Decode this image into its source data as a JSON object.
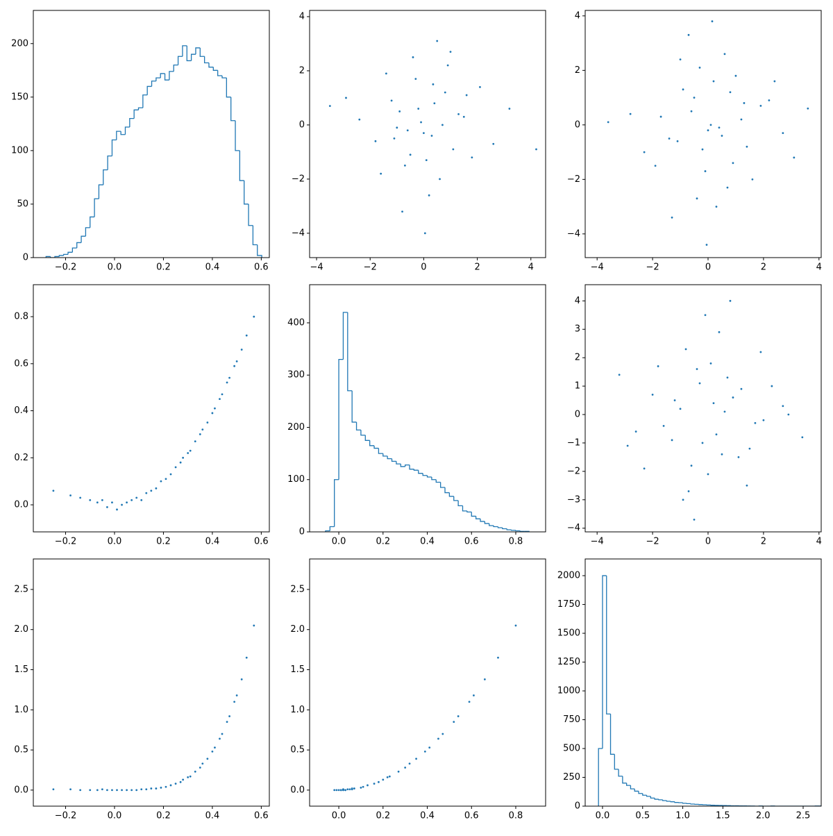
{
  "chart_data": [
    {
      "type": "histogram",
      "bins": [
        -0.28,
        -0.262,
        -0.244,
        -0.226,
        -0.208,
        -0.19,
        -0.172,
        -0.154,
        -0.136,
        -0.118,
        -0.1,
        -0.082,
        -0.064,
        -0.046,
        -0.028,
        -0.01,
        0.008,
        0.026,
        0.044,
        0.062,
        0.08,
        0.098,
        0.116,
        0.134,
        0.152,
        0.17,
        0.188,
        0.206,
        0.224,
        0.242,
        0.26,
        0.278,
        0.296,
        0.314,
        0.332,
        0.35,
        0.368,
        0.386,
        0.404,
        0.422,
        0.44,
        0.458,
        0.476,
        0.494,
        0.512,
        0.53,
        0.548,
        0.566,
        0.584,
        0.602
      ],
      "values": [
        1,
        0,
        1,
        2,
        3,
        5,
        9,
        14,
        20,
        28,
        38,
        55,
        68,
        82,
        95,
        110,
        118,
        115,
        122,
        130,
        138,
        140,
        152,
        160,
        165,
        168,
        172,
        166,
        174,
        180,
        188,
        198,
        184,
        190,
        196,
        188,
        182,
        178,
        175,
        170,
        168,
        150,
        128,
        100,
        72,
        50,
        30,
        12,
        2
      ],
      "color": "#1f77b4",
      "xlim": [
        -0.332,
        0.633
      ],
      "ylim": [
        0,
        231
      ],
      "xticks": [
        {
          "value": -0.2,
          "label": "−0.2"
        },
        {
          "value": 0,
          "label": "0.0"
        },
        0.2,
        0.4,
        0.6
      ],
      "yticks": [
        0,
        50,
        100,
        150,
        200
      ]
    },
    {
      "type": "scatter",
      "color": "#1f77b4",
      "xlim": [
        -4.26,
        4.55
      ],
      "ylim": [
        -4.9,
        4.23
      ],
      "x": [
        0.3,
        -1.2,
        0.8,
        -0.5,
        1.5,
        -0.1,
        0.6,
        -1.8,
        2.1,
        -0.9,
        0.0,
        1.1,
        -0.3,
        -2.4,
        0.9,
        0.4,
        -0.7,
        1.8,
        -1.4,
        0.2,
        -0.2,
        1.3,
        -1.0,
        0.5,
        2.6,
        -0.6,
        0.7,
        -2.9,
        0.1,
        -1.6,
        1.0,
        -0.4,
        3.2,
        -0.8,
        0.35,
        1.6,
        -1.1,
        0.05,
        -3.5,
        4.2
      ],
      "values": [
        -0.4,
        0.9,
        1.2,
        -1.1,
        0.3,
        0.1,
        -2.0,
        -0.6,
        1.4,
        0.5,
        -0.3,
        -0.9,
        1.7,
        0.2,
        2.2,
        0.8,
        -1.5,
        -1.2,
        1.9,
        -2.6,
        0.6,
        0.4,
        -0.1,
        3.1,
        -0.7,
        -0.2,
        0.0,
        1.0,
        -1.3,
        -1.8,
        2.7,
        2.5,
        0.6,
        -3.2,
        1.5,
        1.1,
        -0.5,
        -4.0,
        0.7,
        -0.9
      ],
      "xticks": [
        {
          "value": -4,
          "label": "−4"
        },
        {
          "value": -2,
          "label": "−2"
        },
        0,
        2,
        4
      ],
      "yticks": [
        {
          "value": -4,
          "label": "−4"
        },
        {
          "value": -2,
          "label": "−2"
        },
        0,
        2,
        4
      ]
    },
    {
      "type": "scatter",
      "color": "#1f77b4",
      "xlim": [
        -4.43,
        4.08
      ],
      "ylim": [
        -4.87,
        4.2
      ],
      "x": [
        -0.6,
        1.4,
        0.2,
        -1.7,
        0.9,
        0.0,
        -0.3,
        2.2,
        -1.1,
        0.7,
        1.9,
        -2.3,
        0.4,
        -0.9,
        1.2,
        -0.1,
        -1.4,
        0.6,
        2.7,
        -0.5,
        0.3,
        -2.8,
        1.0,
        -0.2,
        1.6,
        -1.0,
        0.1,
        3.1,
        -0.7,
        0.8,
        -1.9,
        0.5,
        -3.6,
        1.3,
        -0.4,
        2.4,
        -1.3,
        0.15,
        3.6,
        -0.05
      ],
      "values": [
        0.5,
        -0.8,
        1.6,
        0.3,
        -1.4,
        -0.2,
        2.1,
        0.9,
        -0.6,
        -2.3,
        0.7,
        -1.0,
        -0.1,
        1.3,
        0.2,
        -1.7,
        -0.5,
        2.6,
        -0.3,
        1.0,
        -3.0,
        0.4,
        1.8,
        -0.9,
        -2.0,
        2.4,
        0.0,
        -1.2,
        3.3,
        1.2,
        -1.5,
        -0.4,
        0.1,
        0.8,
        -2.7,
        1.6,
        -3.4,
        3.8,
        0.6,
        -4.4
      ],
      "xticks": [
        {
          "value": -4,
          "label": "−4"
        },
        {
          "value": -2,
          "label": "−2"
        },
        0,
        2,
        4
      ],
      "yticks": [
        {
          "value": -4,
          "label": "−4"
        },
        {
          "value": -2,
          "label": "−2"
        },
        0,
        2,
        4
      ]
    },
    {
      "type": "scatter",
      "color": "#1f77b4",
      "xlim": [
        -0.332,
        0.633
      ],
      "ylim": [
        -0.115,
        0.936
      ],
      "x": [
        -0.25,
        -0.18,
        -0.14,
        -0.1,
        -0.07,
        -0.05,
        -0.03,
        -0.01,
        0.01,
        0.03,
        0.05,
        0.07,
        0.09,
        0.11,
        0.13,
        0.15,
        0.17,
        0.19,
        0.21,
        0.23,
        0.25,
        0.27,
        0.28,
        0.3,
        0.31,
        0.33,
        0.35,
        0.36,
        0.38,
        0.4,
        0.41,
        0.43,
        0.44,
        0.46,
        0.47,
        0.49,
        0.5,
        0.52,
        0.54,
        0.57
      ],
      "values": [
        0.06,
        0.04,
        0.03,
        0.02,
        0.01,
        0.02,
        -0.01,
        0.01,
        -0.02,
        0.0,
        0.01,
        0.02,
        0.03,
        0.02,
        0.05,
        0.06,
        0.07,
        0.1,
        0.11,
        0.13,
        0.16,
        0.18,
        0.2,
        0.22,
        0.23,
        0.27,
        0.3,
        0.32,
        0.35,
        0.39,
        0.41,
        0.45,
        0.47,
        0.52,
        0.54,
        0.59,
        0.61,
        0.66,
        0.72,
        0.8
      ],
      "xticks": [
        {
          "value": -0.2,
          "label": "−0.2"
        },
        {
          "value": 0,
          "label": "0.0"
        },
        0.2,
        0.4,
        0.6
      ],
      "yticks": [
        {
          "value": 0,
          "label": "0.0"
        },
        0.2,
        0.4,
        0.6,
        0.8
      ]
    },
    {
      "type": "histogram",
      "bins": [
        -0.06,
        -0.04,
        -0.02,
        0.0,
        0.02,
        0.04,
        0.06,
        0.08,
        0.1,
        0.12,
        0.14,
        0.16,
        0.18,
        0.2,
        0.22,
        0.24,
        0.26,
        0.28,
        0.3,
        0.32,
        0.34,
        0.36,
        0.38,
        0.4,
        0.42,
        0.44,
        0.46,
        0.48,
        0.5,
        0.52,
        0.54,
        0.56,
        0.58,
        0.6,
        0.62,
        0.64,
        0.66,
        0.68,
        0.7,
        0.72,
        0.74,
        0.76,
        0.78,
        0.8,
        0.82,
        0.84,
        0.86
      ],
      "values": [
        2,
        10,
        100,
        330,
        420,
        270,
        210,
        195,
        185,
        175,
        165,
        160,
        150,
        145,
        140,
        135,
        130,
        125,
        128,
        120,
        118,
        112,
        108,
        105,
        100,
        95,
        85,
        75,
        68,
        60,
        50,
        40,
        38,
        30,
        25,
        20,
        16,
        12,
        10,
        8,
        6,
        4,
        3,
        2,
        1,
        1
      ],
      "color": "#1f77b4",
      "xlim": [
        -0.132,
        0.935
      ],
      "ylim": [
        0,
        473
      ],
      "xticks": [
        {
          "value": 0,
          "label": "0.0"
        },
        0.2,
        0.4,
        0.6,
        0.8
      ],
      "yticks": [
        0,
        100,
        200,
        300,
        400
      ]
    },
    {
      "type": "scatter",
      "color": "#1f77b4",
      "xlim": [
        -4.43,
        4.08
      ],
      "ylim": [
        -4.13,
        4.57
      ],
      "x": [
        0.2,
        -1.3,
        1.1,
        -0.4,
        0.6,
        -2.0,
        1.7,
        -0.8,
        0.0,
        2.3,
        -1.6,
        0.9,
        -0.2,
        0.4,
        -1.0,
        1.4,
        -2.6,
        0.7,
        -0.6,
        2.0,
        -0.1,
        1.2,
        -1.8,
        0.3,
        -0.9,
        2.7,
        -0.3,
        1.5,
        -2.3,
        0.8,
        -1.2,
        3.4,
        -0.5,
        0.1,
        -3.2,
        1.9,
        -0.7,
        -2.9,
        2.9,
        0.5
      ],
      "values": [
        0.4,
        -0.9,
        -1.5,
        1.6,
        0.1,
        0.7,
        -0.3,
        2.3,
        -2.1,
        1.0,
        -0.4,
        0.6,
        -1.0,
        2.9,
        0.2,
        -2.5,
        -0.6,
        1.3,
        -1.8,
        -0.2,
        3.5,
        0.9,
        1.7,
        -0.7,
        -3.0,
        0.3,
        1.1,
        -1.2,
        -1.9,
        4.0,
        0.5,
        -0.8,
        -3.7,
        1.8,
        1.4,
        2.2,
        -2.7,
        -1.1,
        0.0,
        -1.4
      ],
      "xticks": [
        {
          "value": -4,
          "label": "−4"
        },
        {
          "value": -2,
          "label": "−2"
        },
        0,
        2,
        4
      ],
      "yticks": [
        {
          "value": -4,
          "label": "−4"
        },
        {
          "value": -3,
          "label": "−3"
        },
        {
          "value": -2,
          "label": "−2"
        },
        {
          "value": -1,
          "label": "−1"
        },
        0,
        1,
        2,
        3,
        4
      ]
    },
    {
      "type": "scatter",
      "color": "#1f77b4",
      "xlim": [
        -0.332,
        0.633
      ],
      "ylim": [
        -0.2,
        2.88
      ],
      "x": [
        -0.25,
        -0.18,
        -0.14,
        -0.1,
        -0.07,
        -0.05,
        -0.03,
        -0.01,
        0.01,
        0.03,
        0.05,
        0.07,
        0.09,
        0.11,
        0.13,
        0.15,
        0.17,
        0.19,
        0.21,
        0.23,
        0.25,
        0.27,
        0.28,
        0.3,
        0.31,
        0.33,
        0.35,
        0.36,
        0.38,
        0.4,
        0.41,
        0.43,
        0.44,
        0.46,
        0.47,
        0.49,
        0.5,
        0.52,
        0.54,
        0.57
      ],
      "values": [
        0.01,
        0.01,
        0.0,
        0.0,
        0.0,
        0.01,
        0.0,
        0.0,
        0.0,
        0.0,
        0.0,
        0.0,
        0.0,
        0.01,
        0.01,
        0.02,
        0.02,
        0.03,
        0.04,
        0.06,
        0.08,
        0.1,
        0.13,
        0.16,
        0.17,
        0.23,
        0.28,
        0.33,
        0.39,
        0.48,
        0.53,
        0.64,
        0.7,
        0.85,
        0.92,
        1.1,
        1.18,
        1.38,
        1.65,
        2.05
      ],
      "xticks": [
        {
          "value": -0.2,
          "label": "−0.2"
        },
        {
          "value": 0,
          "label": "0.0"
        },
        0.2,
        0.4,
        0.6
      ],
      "yticks": [
        {
          "value": 0,
          "label": "0.0"
        },
        0.5,
        {
          "value": 1,
          "label": "1.0"
        },
        1.5,
        {
          "value": 2,
          "label": "2.0"
        },
        2.5
      ]
    },
    {
      "type": "scatter",
      "color": "#1f77b4",
      "xlim": [
        -0.132,
        0.935
      ],
      "ylim": [
        -0.2,
        2.88
      ],
      "x": [
        0.06,
        0.04,
        0.03,
        0.02,
        0.01,
        0.02,
        -0.01,
        0.01,
        -0.02,
        0.0,
        0.01,
        0.02,
        0.03,
        0.02,
        0.05,
        0.06,
        0.07,
        0.1,
        0.11,
        0.13,
        0.16,
        0.18,
        0.2,
        0.22,
        0.23,
        0.27,
        0.3,
        0.32,
        0.35,
        0.39,
        0.41,
        0.45,
        0.47,
        0.52,
        0.54,
        0.59,
        0.61,
        0.66,
        0.72,
        0.8
      ],
      "values": [
        0.01,
        0.01,
        0.0,
        0.0,
        0.0,
        0.01,
        0.0,
        0.0,
        0.0,
        0.0,
        0.0,
        0.0,
        0.0,
        0.01,
        0.01,
        0.02,
        0.02,
        0.03,
        0.04,
        0.06,
        0.08,
        0.1,
        0.13,
        0.16,
        0.17,
        0.23,
        0.28,
        0.33,
        0.39,
        0.48,
        0.53,
        0.64,
        0.7,
        0.85,
        0.92,
        1.1,
        1.18,
        1.38,
        1.65,
        2.05
      ],
      "xticks": [
        {
          "value": 0,
          "label": "0.0"
        },
        0.2,
        0.4,
        0.6,
        0.8
      ],
      "yticks": [
        {
          "value": 0,
          "label": "0.0"
        },
        0.5,
        {
          "value": 1,
          "label": "1.0"
        },
        1.5,
        {
          "value": 2,
          "label": "2.0"
        },
        2.5
      ]
    },
    {
      "type": "histogram",
      "bins": [
        -0.05,
        0.0,
        0.05,
        0.1,
        0.15,
        0.2,
        0.25,
        0.3,
        0.35,
        0.4,
        0.45,
        0.5,
        0.55,
        0.6,
        0.65,
        0.7,
        0.75,
        0.8,
        0.85,
        0.9,
        0.95,
        1.0,
        1.05,
        1.1,
        1.15,
        1.2,
        1.25,
        1.3,
        1.35,
        1.4,
        1.45,
        1.5,
        1.55,
        1.6,
        1.65,
        1.7,
        1.75,
        1.8,
        1.85,
        1.9,
        1.95,
        2.0,
        2.05,
        2.1,
        2.15,
        2.2,
        2.25,
        2.3,
        2.35,
        2.4,
        2.45,
        2.5,
        2.55,
        2.6,
        2.65,
        2.7,
        2.75
      ],
      "values": [
        500,
        2000,
        800,
        450,
        320,
        260,
        200,
        180,
        150,
        130,
        110,
        95,
        85,
        70,
        60,
        55,
        48,
        42,
        38,
        32,
        30,
        25,
        22,
        18,
        16,
        14,
        12,
        10,
        8,
        7,
        6,
        5,
        4,
        3,
        3,
        2,
        2,
        1,
        1,
        0,
        1,
        0,
        0,
        1,
        0,
        0,
        0,
        0,
        0,
        0,
        0,
        0,
        0,
        0,
        1,
        1
      ],
      "color": "#1f77b4",
      "xlim": [
        -0.216,
        2.725
      ],
      "ylim": [
        0,
        2145
      ],
      "xticks": [
        {
          "value": 0,
          "label": "0.0"
        },
        0.5,
        {
          "value": 1,
          "label": "1.0"
        },
        1.5,
        {
          "value": 2,
          "label": "2.0"
        },
        2.5
      ],
      "yticks": [
        0,
        250,
        500,
        750,
        1000,
        1250,
        1500,
        1750,
        2000
      ]
    }
  ]
}
